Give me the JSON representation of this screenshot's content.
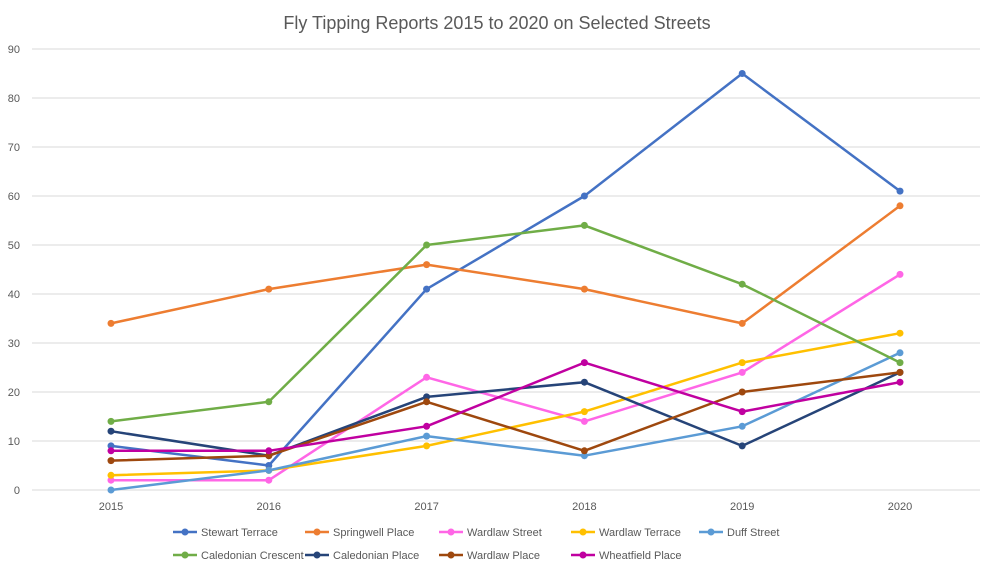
{
  "chart_data": {
    "type": "line",
    "title": "Fly Tipping Reports 2015 to 2020 on Selected Streets",
    "xlabel": "",
    "ylabel": "",
    "x": [
      "2015",
      "2016",
      "2017",
      "2018",
      "2019",
      "2020"
    ],
    "ylim": [
      0,
      90
    ],
    "yticks": [
      0,
      10,
      20,
      30,
      40,
      50,
      60,
      70,
      80,
      90
    ],
    "grid": true,
    "legend_position": "bottom",
    "series": [
      {
        "name": "Stewart Terrace",
        "color": "#4472C4",
        "values": [
          9,
          5,
          41,
          60,
          85,
          61
        ]
      },
      {
        "name": "Springwell Place",
        "color": "#ED7D31",
        "values": [
          34,
          41,
          46,
          41,
          34,
          58
        ]
      },
      {
        "name": "Wardlaw Street",
        "color": "#FF66E6",
        "values": [
          2,
          2,
          23,
          14,
          24,
          44
        ]
      },
      {
        "name": "Wardlaw Terrace",
        "color": "#FFC000",
        "values": [
          3,
          4,
          9,
          16,
          26,
          32
        ]
      },
      {
        "name": "Duff Street",
        "color": "#5B9BD5",
        "values": [
          0,
          4,
          11,
          7,
          13,
          28
        ]
      },
      {
        "name": "Caledonian Crescent",
        "color": "#70AD47",
        "values": [
          14,
          18,
          50,
          54,
          42,
          26
        ]
      },
      {
        "name": "Caledonian Place",
        "color": "#264478",
        "values": [
          12,
          7,
          19,
          22,
          9,
          24
        ]
      },
      {
        "name": "Wardlaw Place",
        "color": "#9E480E",
        "values": [
          6,
          7,
          18,
          8,
          20,
          24
        ]
      },
      {
        "name": "Wheatfield Place",
        "color": "#C000A0",
        "values": [
          8,
          8,
          13,
          26,
          16,
          22
        ]
      }
    ]
  }
}
